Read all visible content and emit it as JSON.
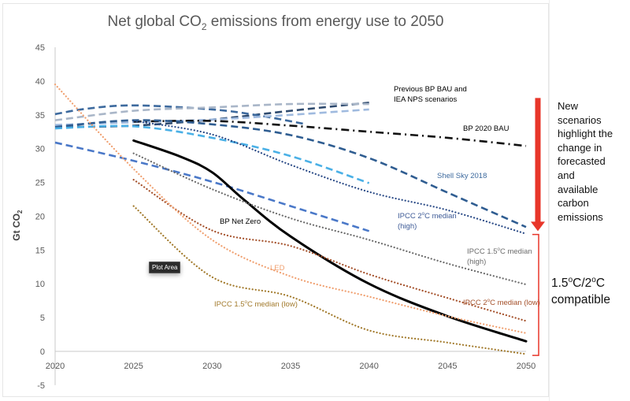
{
  "chart_data": {
    "type": "line",
    "title_pre": "Net global CO",
    "title_sub": "2",
    "title_post": " emissions from energy use to 2050",
    "ylabel_pre": "Gt CO",
    "ylabel_sub": "2",
    "xlabel": "",
    "xlim": [
      2020,
      2050
    ],
    "ylim": [
      -5,
      45
    ],
    "x_ticks": [
      "2020",
      "2025",
      "2030",
      "2035",
      "2040",
      "2045",
      "2050"
    ],
    "y_ticks": [
      "-5",
      "0",
      "5",
      "10",
      "15",
      "20",
      "25",
      "30",
      "35",
      "40",
      "45"
    ],
    "grid": false,
    "series": [
      {
        "name": "Previous BP BAU (dark)",
        "style": "dashed",
        "color": "#2e4a6e",
        "x": [
          2020,
          2025,
          2030,
          2035,
          2040
        ],
        "y": [
          33.2,
          33.4,
          34.3,
          35.6,
          36.8
        ]
      },
      {
        "name": "IEA NPS (steel blue)",
        "style": "dashed",
        "color": "#3d6a9e",
        "x": [
          2020,
          2022,
          2025,
          2030,
          2033,
          2036
        ],
        "y": [
          35.1,
          35.9,
          36.4,
          35.8,
          34.9,
          33.6
        ]
      },
      {
        "name": "Previous scenario (grey-blue)",
        "style": "dashed",
        "color": "#a9b6c8",
        "x": [
          2020,
          2025,
          2030,
          2035,
          2040
        ],
        "y": [
          34.2,
          35.6,
          36.1,
          36.6,
          36.6
        ]
      },
      {
        "name": "Previous scenario (light blue)",
        "style": "dashed",
        "color": "#9fbadf",
        "x": [
          2020,
          2025,
          2030,
          2035,
          2040
        ],
        "y": [
          33.5,
          33.9,
          34.3,
          35.0,
          35.8
        ]
      },
      {
        "name": "BP 2020 BAU",
        "style": "dashdot",
        "color": "#111111",
        "x": [
          2025,
          2030,
          2035,
          2040,
          2045,
          2050
        ],
        "y": [
          34.0,
          34.1,
          33.4,
          32.5,
          31.6,
          30.4
        ]
      },
      {
        "name": "Shell Sky 2018",
        "style": "dashed",
        "color": "#2f5d91",
        "x": [
          2020,
          2025,
          2030,
          2035,
          2040,
          2045,
          2050
        ],
        "y": [
          33.2,
          34.2,
          33.6,
          32.0,
          28.6,
          23.5,
          18.4
        ]
      },
      {
        "name": "Sky-blue scenario",
        "style": "dashed",
        "color": "#4ab0e6",
        "x": [
          2020,
          2025,
          2030,
          2035,
          2040
        ],
        "y": [
          33.0,
          33.3,
          31.6,
          28.9,
          24.9
        ]
      },
      {
        "name": "IPCC 2°C median (high)",
        "style": "dotted",
        "color": "#2a4a86",
        "x": [
          2025,
          2030,
          2035,
          2040,
          2045,
          2050
        ],
        "y": [
          34.1,
          32.1,
          27.6,
          23.6,
          20.9,
          17.4
        ]
      },
      {
        "name": "Lower blue dashed scenario",
        "style": "dashed",
        "color": "#4a78c8",
        "x": [
          2020,
          2025,
          2030,
          2035,
          2040
        ],
        "y": [
          30.9,
          28.2,
          25.1,
          21.5,
          17.8
        ]
      },
      {
        "name": "BP Net Zero",
        "style": "solid",
        "color": "#000000",
        "x": [
          2025,
          2028,
          2030,
          2032,
          2035,
          2040,
          2045,
          2050
        ],
        "y": [
          31.2,
          28.8,
          26.5,
          22.5,
          17.0,
          10.0,
          5.2,
          1.5
        ]
      },
      {
        "name": "IPCC 1.5°C median (high)",
        "style": "dotted",
        "color": "#6c6c6c",
        "x": [
          2025,
          2030,
          2035,
          2040,
          2045,
          2050
        ],
        "y": [
          29.3,
          24.0,
          19.7,
          16.5,
          13.0,
          9.9
        ]
      },
      {
        "name": "IPCC 2°C median (low)",
        "style": "dotted",
        "color": "#a4502a",
        "x": [
          2025,
          2030,
          2035,
          2040,
          2045,
          2050
        ],
        "y": [
          25.4,
          17.9,
          15.6,
          11.4,
          7.9,
          4.5
        ]
      },
      {
        "name": "LED",
        "style": "dotted",
        "color": "#f0a070",
        "x": [
          2020,
          2025,
          2030,
          2035,
          2040,
          2045,
          2050
        ],
        "y": [
          39.5,
          27.0,
          16.5,
          11.1,
          8.1,
          5.2,
          2.7
        ]
      },
      {
        "name": "IPCC 1.5°C median (low)",
        "style": "dotted",
        "color": "#a27a2c",
        "x": [
          2025,
          2030,
          2035,
          2040,
          2045,
          2050
        ],
        "y": [
          21.5,
          11.0,
          8.1,
          3.1,
          1.3,
          -0.4
        ]
      }
    ],
    "annotations": {
      "previous": {
        "line1": "Previous BP BAU and",
        "line2": "IEA NPS scenarios",
        "color": "#000000"
      },
      "bp2020": {
        "text": "BP 2020 BAU",
        "color": "#000000"
      },
      "shell": {
        "text": "Shell Sky 2018",
        "color": "#3d6a9e"
      },
      "ipcc2high": {
        "pre": "IPCC 2",
        "sup": "o",
        "post": "C median",
        "line2": "(high)",
        "color": "#3d5a96"
      },
      "netzero": {
        "text": "BP Net Zero",
        "color": "#000000"
      },
      "ipcc15high": {
        "pre": "IPCC 1.5",
        "sup": "o",
        "post": "C median",
        "line2": "(high)",
        "color": "#6c6c6c"
      },
      "led": {
        "text": "LED",
        "color": "#f0a070"
      },
      "ipcc2low": {
        "pre": "IPCC 2",
        "sup": "o",
        "post": "C median (low)",
        "color": "#a4502a"
      },
      "ipcc15low": {
        "pre": "IPCC 1.5",
        "sup": "o",
        "post": "C median (low)",
        "color": "#a27a2c"
      }
    },
    "arrow_color": "#e8362a",
    "bracket_color": "#e8362a",
    "arrow_range_y": [
      37.5,
      17.8
    ],
    "bracket_range_y": [
      17.3,
      -0.6
    ]
  },
  "tooltip": {
    "text": "Plot Area"
  },
  "side_note": {
    "lines": [
      "New",
      "scenarios",
      "highlight the",
      "change in",
      "forecasted",
      "and",
      "available",
      "carbon",
      "emissions"
    ]
  },
  "compat_label": {
    "pre1": "1.5",
    "sup1": "o",
    "mid": "C/2",
    "sup2": "o",
    "post": "C",
    "line2": "compatible"
  }
}
